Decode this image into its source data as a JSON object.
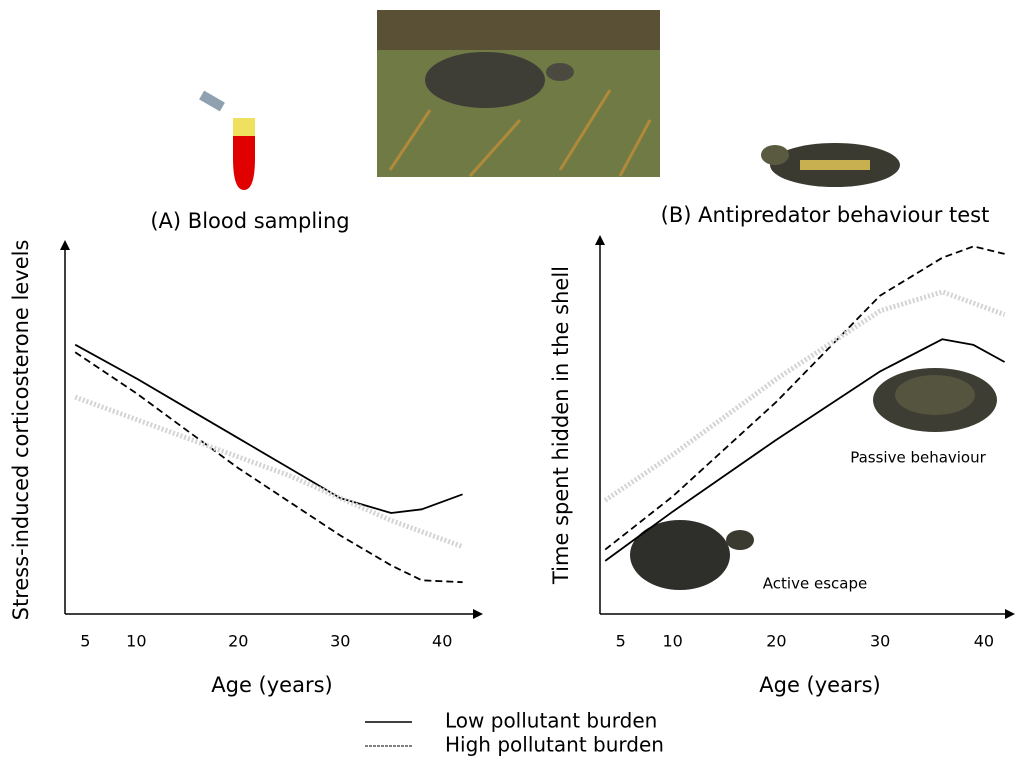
{
  "chart_data": [
    {
      "type": "line",
      "title": "(A) Blood sampling",
      "x_label": "Age (years)",
      "y_label": "Stress-induced corticosterone levels",
      "xlim": [
        3,
        44
      ],
      "ylim": [
        0,
        100
      ],
      "xticks": [
        5,
        10,
        20,
        30,
        40
      ],
      "x": [
        4,
        10,
        15,
        20,
        25,
        30,
        35,
        38,
        42
      ],
      "series": [
        {
          "name": "Low pollutant burden",
          "color": "#000000",
          "style": "solid",
          "values": [
            72,
            63,
            55,
            47,
            39,
            31,
            27,
            28,
            32
          ]
        },
        {
          "name": "High pollutant burden",
          "color": "#000000",
          "style": "dashed",
          "values": [
            70,
            59,
            49,
            39,
            30,
            21,
            13,
            9,
            8.5
          ]
        },
        {
          "color": "#d4d4d4",
          "style": "dotted",
          "values": [
            58,
            52,
            47,
            42,
            37,
            31,
            25,
            22,
            18
          ]
        }
      ]
    },
    {
      "type": "line",
      "title": "(B) Antipredator behaviour test",
      "x_label": "Age (years)",
      "y_label": "Time spent hidden in the shell",
      "xlim": [
        3,
        43
      ],
      "ylim": [
        0,
        100
      ],
      "xticks": [
        5,
        10,
        20,
        30,
        40
      ],
      "x": [
        3.5,
        10,
        20,
        30,
        36,
        39,
        42
      ],
      "annotations": [
        "Passive behaviour",
        "Active escape"
      ],
      "series": [
        {
          "color": "#000000",
          "style": "solid",
          "values": [
            14,
            27,
            46,
            64,
            72.5,
            71,
            66.5
          ]
        },
        {
          "color": "#000000",
          "style": "dashed",
          "values": [
            17,
            31,
            56,
            84,
            94,
            97,
            95
          ]
        },
        {
          "color": "#d4d4d4",
          "style": "dotted",
          "values": [
            30,
            42,
            62,
            80,
            85,
            82,
            79
          ]
        }
      ]
    }
  ]
}
